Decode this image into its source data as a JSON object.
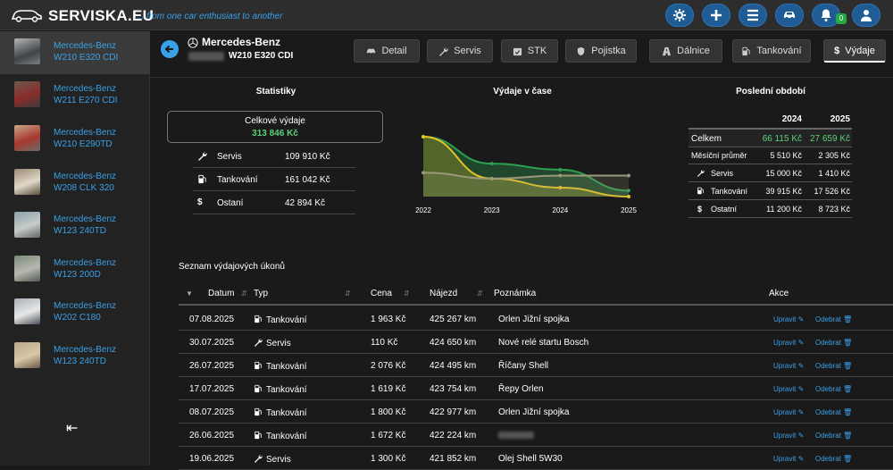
{
  "header": {
    "logo": "SERVISKA.EU",
    "tagline": "... from one car enthusiast to another",
    "notification_count": "0",
    "buttons": [
      "settings-icon",
      "plus-icon",
      "menu-icon",
      "car-icon",
      "bell-icon",
      "user-icon"
    ]
  },
  "sidebar": {
    "cars": [
      {
        "brand": "Mercedes-Benz",
        "model": "W210 E320 CDI",
        "active": true
      },
      {
        "brand": "Mercedes-Benz",
        "model": "W211 E270 CDI"
      },
      {
        "brand": "Mercedes-Benz",
        "model": "W210 E290TD"
      },
      {
        "brand": "Mercedes-Benz",
        "model": "W208 CLK 320"
      },
      {
        "brand": "Mercedes-Benz",
        "model": "W123 240TD"
      },
      {
        "brand": "Mercedes-Benz",
        "model": "W123 200D"
      },
      {
        "brand": "Mercedes-Benz",
        "model": "W202 C180"
      },
      {
        "brand": "Mercedes-Benz",
        "model": "W123 240TD"
      }
    ],
    "collapse_icon": "collapse-left-icon"
  },
  "car": {
    "title": "Mercedes-Benz",
    "subtitle": "W210 E320 CDI"
  },
  "tabs": [
    {
      "label": "Detail",
      "icon": "car-icon"
    },
    {
      "label": "Servis",
      "icon": "wrench-icon"
    },
    {
      "label": "STK",
      "icon": "calendar-check-icon"
    },
    {
      "label": "Pojistka",
      "icon": "shield-icon"
    },
    {
      "label": "Dálnice",
      "icon": "road-icon"
    },
    {
      "label": "Tankování",
      "icon": "fuel-icon"
    },
    {
      "label": "Výdaje",
      "icon": "dollar-icon",
      "active": true
    }
  ],
  "stats": {
    "title": "Statistiky",
    "total_label": "Celkové výdaje",
    "total_value": "313 846 Kč",
    "rows": [
      {
        "label": "Servis",
        "value": "109 910 Kč",
        "icon": "wrench-icon"
      },
      {
        "label": "Tankování",
        "value": "161 042 Kč",
        "icon": "fuel-icon"
      },
      {
        "label": "Ostaní",
        "value": "42 894 Kč",
        "icon": "dollar-icon"
      }
    ]
  },
  "chart_title": "Výdaje v čase",
  "chart_data": {
    "type": "area",
    "x": [
      "2022",
      "2023",
      "2024",
      "2025"
    ],
    "series": [
      {
        "values": [
          100,
          55,
          45,
          10
        ],
        "color": "#2e9e4f"
      },
      {
        "values": [
          100,
          30,
          15,
          0
        ],
        "color": "#e6c229"
      },
      {
        "values": [
          40,
          30,
          35,
          35
        ],
        "color": "#9a9a7a"
      }
    ],
    "grid": false
  },
  "periods": {
    "title": "Poslední období",
    "years": [
      "2024",
      "2025"
    ],
    "rows": [
      {
        "label": "Celkem",
        "v2024": "66 115 Kč",
        "v2025": "27 659 Kč",
        "highlight": true
      },
      {
        "label": "Měsíční průměr",
        "v2024": "5 510 Kč",
        "v2025": "2 305 Kč"
      },
      {
        "label": "Servis",
        "v2024": "15 000 Kč",
        "v2025": "1 410 Kč",
        "icon": "wrench-icon"
      },
      {
        "label": "Tankování",
        "v2024": "39 915 Kč",
        "v2025": "17 526 Kč",
        "icon": "fuel-icon"
      },
      {
        "label": "Ostatní",
        "v2024": "11 200 Kč",
        "v2025": "8 723 Kč",
        "icon": "dollar-icon"
      }
    ]
  },
  "expenses": {
    "title": "Seznam výdajových úkonů",
    "columns": [
      "Datum",
      "Typ",
      "Cena",
      "Nájezd",
      "Poznámka",
      "Akce"
    ],
    "edit_label": "Upravit",
    "delete_label": "Odebrat",
    "rows": [
      {
        "date": "07.08.2025",
        "type": "Tankování",
        "type_icon": "fuel-icon",
        "price": "1 963 Kč",
        "mileage": "425 267 km",
        "note": "Orlen Jižní spojka"
      },
      {
        "date": "30.07.2025",
        "type": "Servis",
        "type_icon": "wrench-icon",
        "price": "110 Kč",
        "mileage": "424 650 km",
        "note": "Nové relé startu Bosch"
      },
      {
        "date": "26.07.2025",
        "type": "Tankování",
        "type_icon": "fuel-icon",
        "price": "2 076 Kč",
        "mileage": "424 495 km",
        "note": "Říčany Shell"
      },
      {
        "date": "17.07.2025",
        "type": "Tankování",
        "type_icon": "fuel-icon",
        "price": "1 619 Kč",
        "mileage": "423 754 km",
        "note": "Řepy Orlen"
      },
      {
        "date": "08.07.2025",
        "type": "Tankování",
        "type_icon": "fuel-icon",
        "price": "1 800 Kč",
        "mileage": "422 977 km",
        "note": "Orlen Jižní spojka"
      },
      {
        "date": "26.06.2025",
        "type": "Tankování",
        "type_icon": "fuel-icon",
        "price": "1 672 Kč",
        "mileage": "422 224 km",
        "note": ""
      },
      {
        "date": "19.06.2025",
        "type": "Servis",
        "type_icon": "wrench-icon",
        "price": "1 300 Kč",
        "mileage": "421 852 km",
        "note": "Olej Shell 5W30"
      }
    ]
  }
}
